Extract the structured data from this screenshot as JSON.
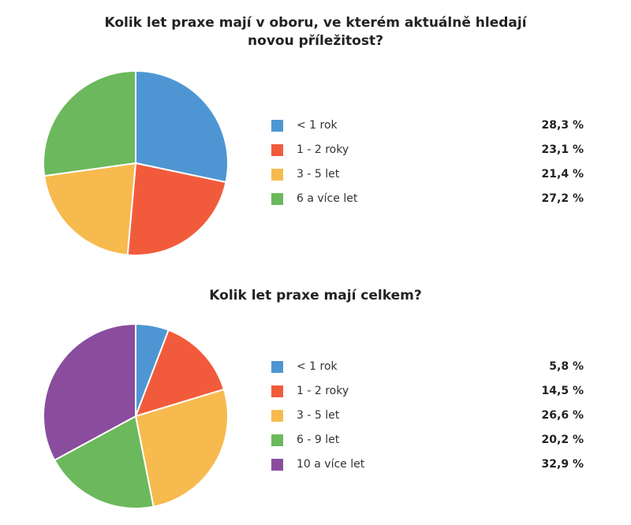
{
  "chart_data": [
    {
      "type": "pie",
      "title": "Kolik let praxe mají v oboru, ve kterém aktuálně hledají novou příležitost?",
      "categories": [
        "< 1 rok",
        "1 - 2 roky",
        "3 - 5 let",
        "6 a více let"
      ],
      "values": [
        28.3,
        23.1,
        21.4,
        27.2
      ],
      "labels": [
        "28,3 %",
        "23,1 %",
        "21,4 %",
        "27,2 %"
      ],
      "colors": [
        "#4E96D3",
        "#F15B3C",
        "#F7BA4F",
        "#6CB85C"
      ],
      "legend": "right"
    },
    {
      "type": "pie",
      "title": "Kolik let praxe mají celkem?",
      "categories": [
        "< 1 rok",
        "1 - 2 roky",
        "3 - 5 let",
        "6 - 9 let",
        "10 a více let"
      ],
      "values": [
        5.8,
        14.5,
        26.6,
        20.2,
        32.9
      ],
      "labels": [
        "5,8 %",
        "14,5 %",
        "26,6 %",
        "20,2 %",
        "32,9 %"
      ],
      "colors": [
        "#4E96D3",
        "#F15B3C",
        "#F7BA4F",
        "#6CB85C",
        "#8A4D9E"
      ],
      "legend": "right"
    }
  ]
}
